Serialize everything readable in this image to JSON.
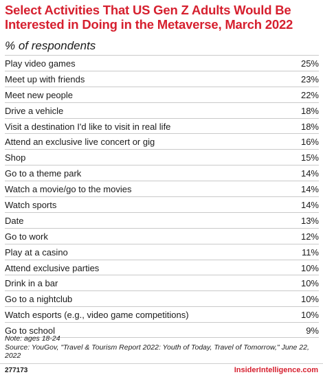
{
  "chart_data": {
    "type": "table",
    "title": "Select Activities That US Gen Z Adults Would Be Interested in Doing in the Metaverse, March 2022",
    "subtitle": "% of respondents",
    "rows": [
      {
        "label": "Play video games",
        "value": "25%"
      },
      {
        "label": "Meet up with friends",
        "value": "23%"
      },
      {
        "label": "Meet new people",
        "value": "22%"
      },
      {
        "label": "Drive a vehicle",
        "value": "18%"
      },
      {
        "label": "Visit a destination I'd like to visit in real life",
        "value": "18%"
      },
      {
        "label": "Attend an exclusive live concert or gig",
        "value": "16%"
      },
      {
        "label": "Shop",
        "value": "15%"
      },
      {
        "label": "Go to a theme park",
        "value": "14%"
      },
      {
        "label": "Watch a movie/go to the movies",
        "value": "14%"
      },
      {
        "label": "Watch sports",
        "value": "14%"
      },
      {
        "label": "Date",
        "value": "13%"
      },
      {
        "label": "Go to work",
        "value": "12%"
      },
      {
        "label": "Play at a casino",
        "value": "11%"
      },
      {
        "label": "Attend exclusive parties",
        "value": "10%"
      },
      {
        "label": "Drink in a bar",
        "value": "10%"
      },
      {
        "label": "Go to a nightclub",
        "value": "10%"
      },
      {
        "label": "Watch esports (e.g., video game competitions)",
        "value": "10%"
      },
      {
        "label": "Go to school",
        "value": "9%"
      }
    ]
  },
  "notes": {
    "note": "Note: ages 18-24",
    "source": "Source: YouGov, \"Travel & Tourism Report 2022: Youth of Today, Travel of Tomorrow,\" June 22, 2022"
  },
  "footer": {
    "chart_id": "277173",
    "brand": "InsiderIntelligence.com"
  },
  "colors": {
    "accent": "#d6202f",
    "text": "#1a1a1a",
    "rule": "#c9c9c9"
  }
}
